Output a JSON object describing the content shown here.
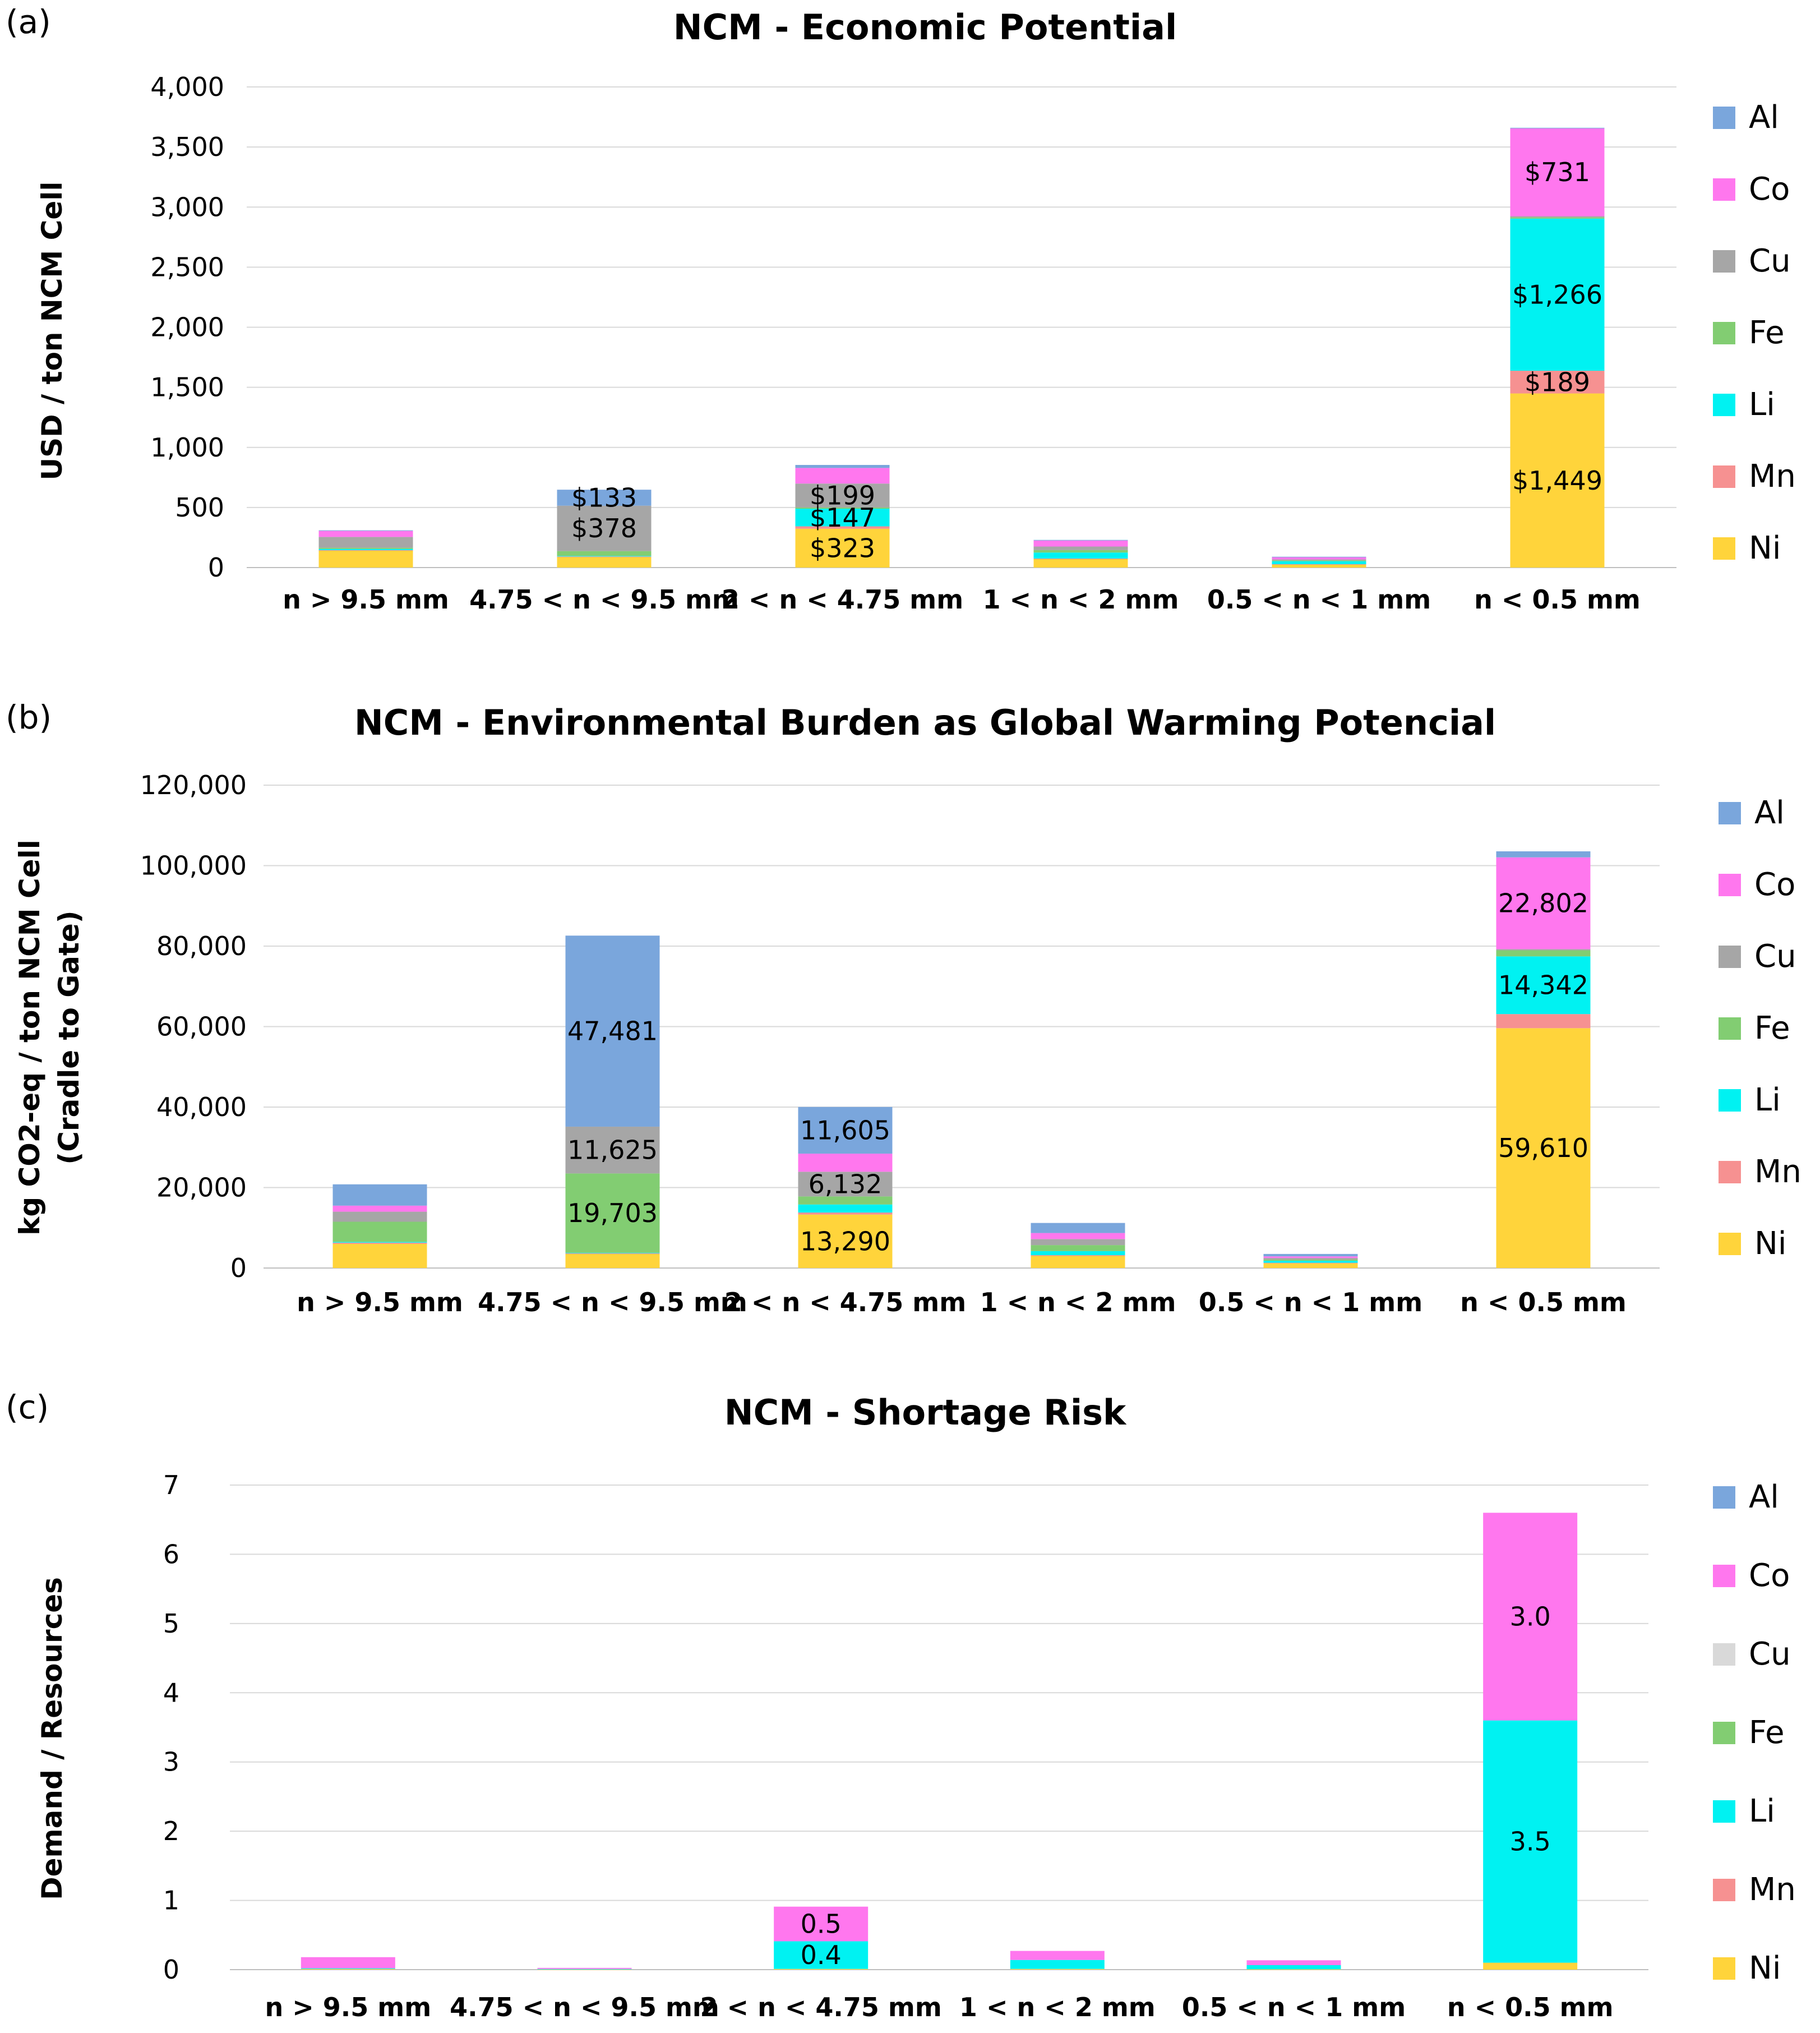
{
  "colors": {
    "Al": "#7aa6dc",
    "Co": "#ff77ee",
    "Cu": "#a6a6a6",
    "Fe": "#82cd72",
    "Li": "#00f2f2",
    "Mn": "#f69191",
    "Ni": "#ffd43b",
    "Cu_c": "#d9d9d9"
  },
  "chart_data": [
    {
      "type": "bar",
      "stacked": true,
      "panel": "(a)",
      "title": "NCM - Economic Potential",
      "ylabel": "USD / ton NCM Cell",
      "xlabel": "",
      "ylim": [
        0,
        4000
      ],
      "yticks": [
        0,
        500,
        1000,
        1500,
        2000,
        2500,
        3000,
        3500,
        4000
      ],
      "ytick_labels": [
        "0",
        "500",
        "1,000",
        "1,500",
        "2,000",
        "2,500",
        "3,000",
        "3,500",
        "4,000"
      ],
      "grid": true,
      "legend": "right",
      "categories": [
        "n > 9.5 mm",
        "4.75 < n < 9.5 mm",
        "2 < n < 4.75 mm",
        "1 < n < 2 mm",
        "0.5 < n < 1 mm",
        "n < 0.5 mm"
      ],
      "series": [
        {
          "name": "Ni",
          "values": [
            140,
            90,
            323,
            70,
            25,
            1449
          ]
        },
        {
          "name": "Mn",
          "values": [
            5,
            2,
            20,
            5,
            3,
            189
          ]
        },
        {
          "name": "Li",
          "values": [
            10,
            5,
            147,
            50,
            25,
            1266
          ]
        },
        {
          "name": "Fe",
          "values": [
            10,
            40,
            10,
            20,
            5,
            10
          ]
        },
        {
          "name": "Cu",
          "values": [
            90,
            378,
            199,
            30,
            10,
            10
          ]
        },
        {
          "name": "Co",
          "values": [
            50,
            0,
            130,
            50,
            20,
            731
          ]
        },
        {
          "name": "Al",
          "values": [
            5,
            133,
            25,
            5,
            2,
            5
          ]
        }
      ],
      "data_labels": [
        {
          "category": 1,
          "series": "Cu",
          "text": "$378"
        },
        {
          "category": 1,
          "series": "Al",
          "text": "$133"
        },
        {
          "category": 2,
          "series": "Ni",
          "text": "$323"
        },
        {
          "category": 2,
          "series": "Li",
          "text": "$147"
        },
        {
          "category": 2,
          "series": "Cu",
          "text": "$199"
        },
        {
          "category": 5,
          "series": "Ni",
          "text": "$1,449"
        },
        {
          "category": 5,
          "series": "Mn",
          "text": "$189"
        },
        {
          "category": 5,
          "series": "Li",
          "text": "$1,266"
        },
        {
          "category": 5,
          "series": "Co",
          "text": "$731"
        }
      ]
    },
    {
      "type": "bar",
      "stacked": true,
      "panel": "(b)",
      "title": "NCM - Environmental Burden as Global Warming Potencial",
      "ylabel": "kg CO2-eq / ton NCM Cell",
      "ylabel2": "(Cradle to Gate)",
      "xlabel": "",
      "ylim": [
        0,
        120000
      ],
      "yticks": [
        0,
        20000,
        40000,
        60000,
        80000,
        100000,
        120000
      ],
      "ytick_labels": [
        "0",
        "20,000",
        "40,000",
        "60,000",
        "80,000",
        "100,000",
        "120,000"
      ],
      "grid": true,
      "legend": "right",
      "categories": [
        "n > 9.5 mm",
        "4.75 < n < 9.5 mm",
        "2 < n < 4.75 mm",
        "1 < n < 2 mm",
        "0.5 < n < 1 mm",
        "n < 0.5 mm"
      ],
      "series": [
        {
          "name": "Ni",
          "values": [
            6000,
            3500,
            13290,
            3000,
            1200,
            59610
          ]
        },
        {
          "name": "Mn",
          "values": [
            300,
            200,
            500,
            200,
            100,
            3500
          ]
        },
        {
          "name": "Li",
          "values": [
            200,
            100,
            2000,
            1000,
            500,
            14342
          ]
        },
        {
          "name": "Fe",
          "values": [
            5000,
            19703,
            2000,
            1500,
            300,
            1500
          ]
        },
        {
          "name": "Cu",
          "values": [
            2500,
            11625,
            6132,
            1500,
            400,
            300
          ]
        },
        {
          "name": "Co",
          "values": [
            1500,
            0,
            4500,
            1500,
            400,
            22802
          ]
        },
        {
          "name": "Al",
          "values": [
            5300,
            47481,
            11605,
            2500,
            600,
            1500
          ]
        }
      ],
      "data_labels": [
        {
          "category": 1,
          "series": "Fe",
          "text": "19,703"
        },
        {
          "category": 1,
          "series": "Cu",
          "text": "11,625"
        },
        {
          "category": 1,
          "series": "Al",
          "text": "47,481"
        },
        {
          "category": 2,
          "series": "Ni",
          "text": "13,290"
        },
        {
          "category": 2,
          "series": "Cu",
          "text": "6,132"
        },
        {
          "category": 2,
          "series": "Al",
          "text": "11,605"
        },
        {
          "category": 5,
          "series": "Ni",
          "text": "59,610"
        },
        {
          "category": 5,
          "series": "Li",
          "text": "14,342"
        },
        {
          "category": 5,
          "series": "Co",
          "text": "22,802"
        }
      ]
    },
    {
      "type": "bar",
      "stacked": true,
      "panel": "(c)",
      "title": "NCM - Shortage Risk",
      "ylabel": "Demand / Resources",
      "xlabel": "",
      "ylim": [
        0,
        7
      ],
      "yticks": [
        0,
        1,
        2,
        3,
        4,
        5,
        6,
        7
      ],
      "ytick_labels": [
        "0",
        "1",
        "2",
        "3",
        "4",
        "5",
        "6",
        "7"
      ],
      "grid": true,
      "legend": "right",
      "categories": [
        "n > 9.5 mm",
        "4.75 < n < 9.5 mm",
        "2 < n < 4.75 mm",
        "1 < n < 2 mm",
        "0.5 < n < 1 mm",
        "n < 0.5 mm"
      ],
      "series": [
        {
          "name": "Ni",
          "values": [
            0.01,
            0.005,
            0.01,
            0.01,
            0.005,
            0.1
          ]
        },
        {
          "name": "Mn",
          "values": [
            0,
            0,
            0,
            0,
            0,
            0
          ]
        },
        {
          "name": "Li",
          "values": [
            0.01,
            0.005,
            0.4,
            0.13,
            0.06,
            3.5
          ]
        },
        {
          "name": "Fe",
          "values": [
            0,
            0,
            0,
            0,
            0,
            0
          ]
        },
        {
          "name": "Cu",
          "values": [
            0,
            0,
            0,
            0,
            0,
            0
          ]
        },
        {
          "name": "Co",
          "values": [
            0.16,
            0.015,
            0.5,
            0.13,
            0.07,
            3.0
          ]
        },
        {
          "name": "Al",
          "values": [
            0,
            0,
            0,
            0,
            0,
            0
          ]
        }
      ],
      "data_labels": [
        {
          "category": 2,
          "series": "Li",
          "text": "0.4"
        },
        {
          "category": 2,
          "series": "Co",
          "text": "0.5"
        },
        {
          "category": 5,
          "series": "Li",
          "text": "3.5"
        },
        {
          "category": 5,
          "series": "Co",
          "text": "3.0"
        }
      ]
    }
  ]
}
